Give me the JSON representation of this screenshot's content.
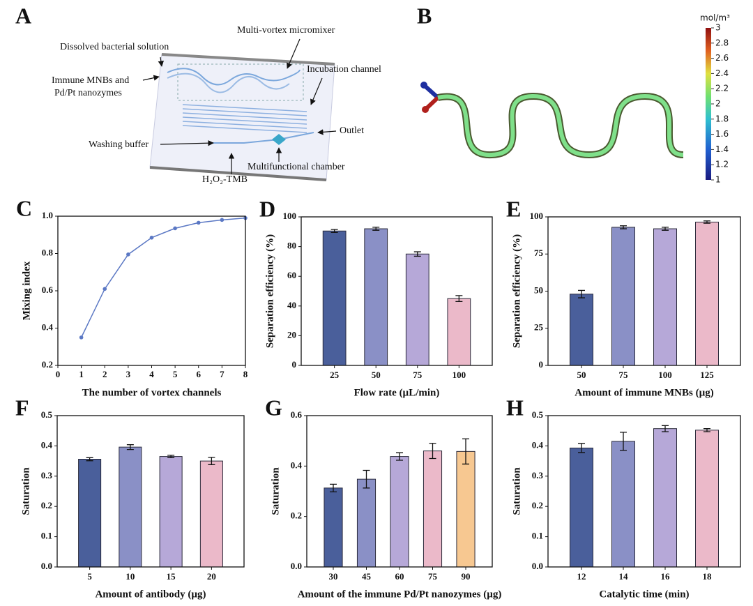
{
  "diagram_a": {
    "panel": "A",
    "labels": [
      "Dissolved bacterial solution",
      "Multi-vortex micromixer",
      "Incubation channel",
      "Immune MNBs and",
      "Pd/Pt nanozymes",
      "Washing buffer",
      "Outlet",
      "Multifunctional chamber",
      "H₂O₂-TMB"
    ]
  },
  "simulation_b": {
    "panel": "B",
    "colorbar": {
      "unit": "mol/m³",
      "lim": [
        1,
        3
      ],
      "ticks": [
        1,
        1.2,
        1.4,
        1.6,
        1.8,
        2,
        2.2,
        2.4,
        2.6,
        2.8,
        3
      ]
    }
  },
  "chart_data": [
    {
      "panel": "C",
      "type": "line",
      "x": [
        1,
        2,
        3,
        4,
        5,
        6,
        7,
        8
      ],
      "values": [
        0.35,
        0.61,
        0.795,
        0.885,
        0.935,
        0.965,
        0.98,
        0.99
      ],
      "color": "#5b78c4",
      "xlim": [
        0,
        8
      ],
      "xticks": [
        0,
        1,
        2,
        3,
        4,
        5,
        6,
        7,
        8
      ],
      "ylim": [
        0.2,
        1
      ],
      "yticks": [
        0.2,
        0.4,
        0.6,
        0.8,
        {
          "value": 1,
          "label": "1.0"
        }
      ],
      "xlabel": "The number of vortex channels",
      "ylabel": "Mixing index"
    },
    {
      "panel": "D",
      "type": "bar",
      "categories": [
        "25",
        "50",
        "75",
        "100"
      ],
      "values": [
        90.5,
        92,
        75,
        45
      ],
      "errors": [
        1,
        1,
        1.5,
        2
      ],
      "colors": [
        "#4a5f9b",
        "#8a90c6",
        "#b6a8d8",
        "#ebb9c9"
      ],
      "ylim": [
        0,
        100
      ],
      "yticks": [
        0,
        20,
        40,
        60,
        80,
        100
      ],
      "xlabel": "Flow rate (µL/min)",
      "ylabel": "Separation efficiency (%)"
    },
    {
      "panel": "E",
      "type": "bar",
      "categories": [
        "50",
        "75",
        "100",
        "125"
      ],
      "values": [
        48,
        93,
        92,
        96.5
      ],
      "errors": [
        2.5,
        1,
        1,
        0.8
      ],
      "colors": [
        "#4a5f9b",
        "#8a90c6",
        "#b6a8d8",
        "#ebb9c9"
      ],
      "ylim": [
        0,
        100
      ],
      "yticks": [
        0,
        25,
        50,
        75,
        100
      ],
      "xlabel": "Amount of immune MNBs (µg)",
      "ylabel": "Separation efficiency (%)"
    },
    {
      "panel": "F",
      "type": "bar",
      "categories": [
        "5",
        "10",
        "15",
        "20"
      ],
      "values": [
        0.356,
        0.396,
        0.365,
        0.35
      ],
      "errors": [
        0.005,
        0.008,
        0.004,
        0.012
      ],
      "colors": [
        "#4a5f9b",
        "#8a90c6",
        "#b6a8d8",
        "#ebb9c9"
      ],
      "ylim": [
        0,
        0.5
      ],
      "yticks": [
        {
          "value": 0,
          "label": "0.0"
        },
        0.1,
        0.2,
        0.3,
        0.4,
        0.5
      ],
      "xlabel": "Amount of  antibody (µg)",
      "ylabel": "Saturation"
    },
    {
      "panel": "G",
      "type": "bar",
      "categories": [
        "30",
        "45",
        "60",
        "75",
        "90"
      ],
      "values": [
        0.313,
        0.348,
        0.438,
        0.46,
        0.458
      ],
      "errors": [
        0.015,
        0.035,
        0.015,
        0.03,
        0.05
      ],
      "colors": [
        "#4a5f9b",
        "#8a90c6",
        "#b6a8d8",
        "#ebb9c9",
        "#f7c891"
      ],
      "ylim": [
        0,
        0.6
      ],
      "yticks": [
        {
          "value": 0,
          "label": "0.0"
        },
        0.2,
        0.4,
        0.6
      ],
      "xlabel": "Amount of the immune Pd/Pt nanozymes (µg)",
      "ylabel": "Saturation"
    },
    {
      "panel": "H",
      "type": "bar",
      "categories": [
        "12",
        "14",
        "16",
        "18"
      ],
      "values": [
        0.393,
        0.415,
        0.457,
        0.452
      ],
      "errors": [
        0.015,
        0.03,
        0.01,
        0.005
      ],
      "colors": [
        "#4a5f9b",
        "#8a90c6",
        "#b6a8d8",
        "#ebb9c9"
      ],
      "ylim": [
        0,
        0.5
      ],
      "yticks": [
        {
          "value": 0,
          "label": "0.0"
        },
        0.1,
        0.2,
        0.3,
        0.4,
        0.5
      ],
      "xlabel": "Catalytic time (min)",
      "ylabel": "Saturation"
    }
  ]
}
